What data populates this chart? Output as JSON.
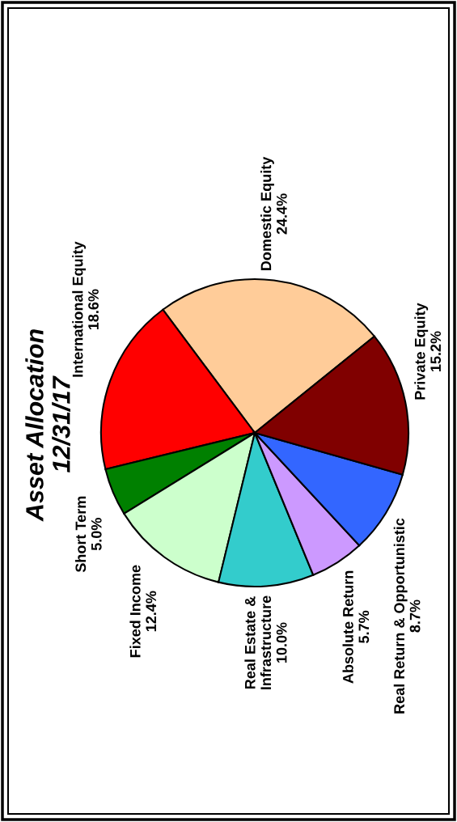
{
  "chart_data": {
    "type": "pie",
    "title": "Asset Allocation\n12/31/17",
    "categories": [
      "Domestic Equity",
      "International Equity",
      "Short Term",
      "Fixed Income",
      "Real Estate &\nInfrastructure",
      "Absolute Return",
      "Real Return & Opportunistic",
      "Private Equity"
    ],
    "values": [
      24.4,
      18.6,
      5.0,
      12.4,
      10.0,
      5.7,
      8.7,
      15.2
    ],
    "value_labels": [
      "24.4%",
      "18.6%",
      "5.0%",
      "12.4%",
      "10.0%",
      "5.7%",
      "8.7%",
      "15.2%"
    ],
    "colors": [
      "#ffcc99",
      "#ff0000",
      "#008000",
      "#ccffcc",
      "#33cccc",
      "#cc99ff",
      "#3366ff",
      "#800000"
    ],
    "legend": false
  }
}
